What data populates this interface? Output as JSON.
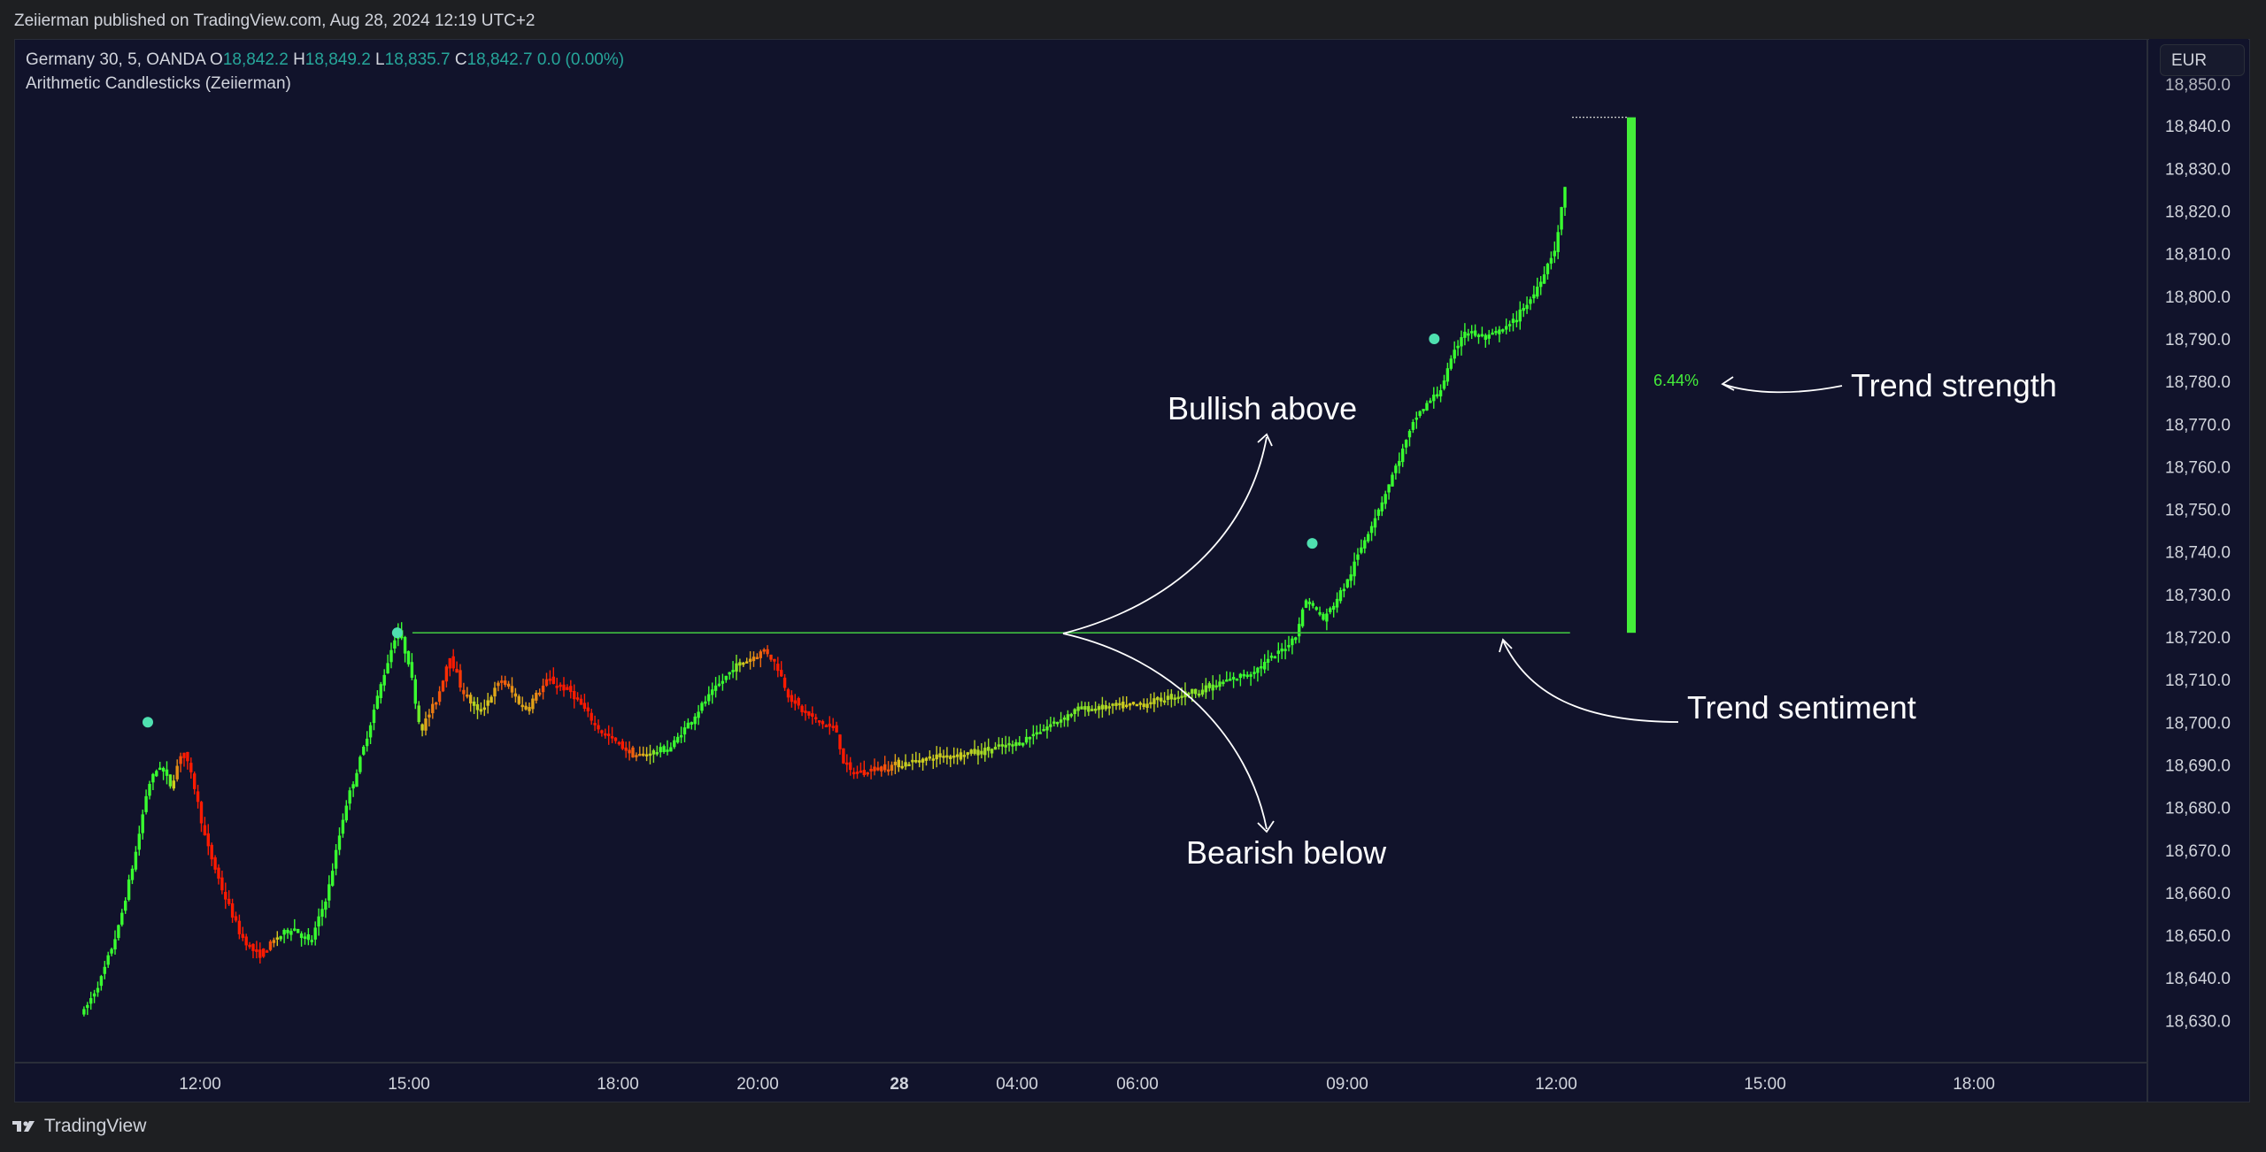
{
  "header": {
    "publish_line": "Zeiierman published on TradingView.com, Aug 28, 2024 12:19 UTC+2"
  },
  "legend": {
    "symbol": "Germany 30, 5, OANDA",
    "o_label": "O",
    "o_value": "18,842.2",
    "h_label": "H",
    "h_value": "18,849.2",
    "l_label": "L",
    "l_value": "18,835.7",
    "c_label": "C",
    "c_value": "18,842.7",
    "change": "0.0 (0.00%)",
    "indicator": "Arithmetic Candlesticks (Zeiierman)"
  },
  "currency_button": "EUR",
  "footer": {
    "brand": "TradingView",
    "brand_icon": "tradingview-logo-icon"
  },
  "colors": {
    "background": "#11132b",
    "bull": "#39ff30",
    "bear": "#ff1a00",
    "dot": "#4fe0b0",
    "sentiment_line": "#3fbf40",
    "strength_bar": "#44ee3a"
  },
  "chart_data": {
    "type": "candlestick",
    "symbol": "Germany 30",
    "interval": "5",
    "ylim": [
      18624,
      18850
    ],
    "y_ticks": [
      18630,
      18640,
      18650,
      18660,
      18670,
      18680,
      18690,
      18700,
      18710,
      18720,
      18730,
      18740,
      18750,
      18760,
      18770,
      18780,
      18790,
      18800,
      18810,
      18820,
      18830,
      18840
    ],
    "y_tick_labels": [
      "18,630.0",
      "18,640.0",
      "18,650.0",
      "18,660.0",
      "18,670.0",
      "18,680.0",
      "18,690.0",
      "18,700.0",
      "18,710.0",
      "18,720.0",
      "18,730.0",
      "18,740.0",
      "18,750.0",
      "18,760.0",
      "18,770.0",
      "18,780.0",
      "18,790.0",
      "18,800.0",
      "18,810.0",
      "18,820.0",
      "18,830.0",
      "18,840.0"
    ],
    "x_ticks": [
      {
        "label": "12:00",
        "bold": false
      },
      {
        "label": "15:00",
        "bold": false
      },
      {
        "label": "18:00",
        "bold": false
      },
      {
        "label": "20:00",
        "bold": false
      },
      {
        "label": "28",
        "bold": true
      },
      {
        "label": "04:00",
        "bold": false
      },
      {
        "label": "06:00",
        "bold": false
      },
      {
        "label": "09:00",
        "bold": false
      },
      {
        "label": "12:00",
        "bold": false
      },
      {
        "label": "15:00",
        "bold": false
      },
      {
        "label": "18:00",
        "bold": false
      }
    ],
    "price_path": [
      [
        "10:20",
        18632
      ],
      [
        "10:35",
        18640
      ],
      [
        "10:50",
        18652
      ],
      [
        "11:05",
        18670
      ],
      [
        "11:15",
        18685
      ],
      [
        "11:25",
        18690
      ],
      [
        "11:35",
        18685
      ],
      [
        "11:45",
        18694
      ],
      [
        "11:55",
        18685
      ],
      [
        "12:05",
        18672
      ],
      [
        "12:20",
        18660
      ],
      [
        "12:35",
        18650
      ],
      [
        "12:50",
        18645
      ],
      [
        "13:05",
        18649
      ],
      [
        "13:20",
        18652
      ],
      [
        "13:35",
        18648
      ],
      [
        "13:50",
        18660
      ],
      [
        "14:05",
        18680
      ],
      [
        "14:20",
        18693
      ],
      [
        "14:35",
        18708
      ],
      [
        "14:50",
        18722
      ],
      [
        "15:00",
        18714
      ],
      [
        "15:10",
        18698
      ],
      [
        "15:25",
        18706
      ],
      [
        "15:35",
        18716
      ],
      [
        "15:45",
        18708
      ],
      [
        "16:00",
        18702
      ],
      [
        "16:20",
        18710
      ],
      [
        "16:40",
        18703
      ],
      [
        "17:00",
        18710
      ],
      [
        "17:20",
        18707
      ],
      [
        "17:45",
        18698
      ],
      [
        "18:15",
        18692
      ],
      [
        "18:45",
        18694
      ],
      [
        "19:15",
        18705
      ],
      [
        "19:40",
        18713
      ],
      [
        "20:10",
        18717
      ],
      [
        "20:25",
        18713
      ],
      [
        "20:40",
        18706
      ],
      [
        "21:00",
        18702
      ],
      [
        "21:20",
        18700
      ],
      [
        "21:40",
        18698
      ],
      [
        "21:50",
        18690
      ],
      [
        "22:00",
        18688
      ],
      [
        "02:00",
        18692
      ],
      [
        "03:00",
        18693
      ],
      [
        "04:00",
        18695
      ],
      [
        "05:00",
        18703
      ],
      [
        "06:00",
        18704
      ],
      [
        "07:00",
        18708
      ],
      [
        "07:40",
        18712
      ],
      [
        "08:00",
        18716
      ],
      [
        "08:15",
        18720
      ],
      [
        "08:25",
        18729
      ],
      [
        "08:40",
        18724
      ],
      [
        "09:00",
        18733
      ],
      [
        "09:15",
        18743
      ],
      [
        "09:30",
        18752
      ],
      [
        "09:45",
        18762
      ],
      [
        "10:00",
        18772
      ],
      [
        "10:20",
        18778
      ],
      [
        "10:40",
        18792
      ],
      [
        "11:00",
        18790
      ],
      [
        "11:20",
        18793
      ],
      [
        "11:40",
        18800
      ],
      [
        "12:00",
        18812
      ],
      [
        "12:10",
        18830
      ]
    ],
    "trend_sentiment_level": 18721,
    "trend_strength_pct": 6.44,
    "signal_dots": [
      [
        "11:15",
        18700
      ],
      [
        "14:50",
        18721
      ],
      [
        "08:30",
        18742
      ],
      [
        "10:15",
        18790
      ]
    ],
    "annotations": [
      "Bullish above",
      "Bearish below",
      "Trend strength",
      "Trend sentiment"
    ],
    "color_scale": "green = bullish / red = bearish"
  }
}
